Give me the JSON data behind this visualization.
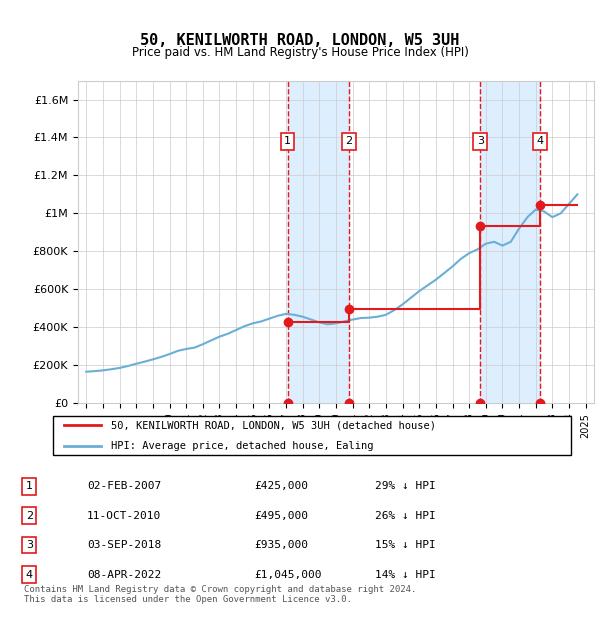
{
  "title": "50, KENILWORTH ROAD, LONDON, W5 3UH",
  "subtitle": "Price paid vs. HM Land Registry's House Price Index (HPI)",
  "footer": "Contains HM Land Registry data © Crown copyright and database right 2024.\nThis data is licensed under the Open Government Licence v3.0.",
  "legend_line1": "50, KENILWORTH ROAD, LONDON, W5 3UH (detached house)",
  "legend_line2": "HPI: Average price, detached house, Ealing",
  "transactions": [
    {
      "num": 1,
      "date": "02-FEB-2007",
      "price": "£425,000",
      "pct": "29% ↓ HPI",
      "year": 2007.09
    },
    {
      "num": 2,
      "date": "11-OCT-2010",
      "price": "£495,000",
      "pct": "26% ↓ HPI",
      "year": 2010.78
    },
    {
      "num": 3,
      "date": "03-SEP-2018",
      "price": "£935,000",
      "pct": "15% ↓ HPI",
      "year": 2018.67
    },
    {
      "num": 4,
      "date": "08-APR-2022",
      "price": "£1,045,000",
      "pct": "14% ↓ HPI",
      "year": 2022.27
    }
  ],
  "hpi_line_color": "#6baed6",
  "price_line_color": "#e31a1c",
  "marker_color": "#e31a1c",
  "transaction_color": "#e31a1c",
  "shade_color": "#ddeeff",
  "vline_color": "#e31a1c",
  "grid_color": "#cccccc",
  "ylim": [
    0,
    1700000
  ],
  "yticks": [
    0,
    200000,
    400000,
    600000,
    800000,
    1000000,
    1200000,
    1400000,
    1600000
  ],
  "xlim_start": 1994.5,
  "xlim_end": 2025.5,
  "hpi_x": [
    1995,
    1995.5,
    1996,
    1996.5,
    1997,
    1997.5,
    1998,
    1998.5,
    1999,
    1999.5,
    2000,
    2000.5,
    2001,
    2001.5,
    2002,
    2002.5,
    2003,
    2003.5,
    2004,
    2004.5,
    2005,
    2005.5,
    2006,
    2006.5,
    2007,
    2007.5,
    2008,
    2008.5,
    2009,
    2009.5,
    2010,
    2010.5,
    2011,
    2011.5,
    2012,
    2012.5,
    2013,
    2013.5,
    2014,
    2014.5,
    2015,
    2015.5,
    2016,
    2016.5,
    2017,
    2017.5,
    2018,
    2018.5,
    2019,
    2019.5,
    2020,
    2020.5,
    2021,
    2021.5,
    2022,
    2022.5,
    2023,
    2023.5,
    2024,
    2024.5
  ],
  "hpi_y": [
    165000,
    168000,
    172000,
    178000,
    185000,
    195000,
    207000,
    218000,
    230000,
    243000,
    258000,
    275000,
    285000,
    292000,
    310000,
    330000,
    350000,
    365000,
    385000,
    405000,
    420000,
    430000,
    445000,
    460000,
    470000,
    465000,
    455000,
    440000,
    425000,
    415000,
    420000,
    430000,
    440000,
    448000,
    450000,
    455000,
    465000,
    490000,
    520000,
    555000,
    590000,
    620000,
    650000,
    685000,
    720000,
    760000,
    790000,
    810000,
    840000,
    850000,
    830000,
    850000,
    920000,
    980000,
    1020000,
    1010000,
    980000,
    1000000,
    1050000,
    1100000
  ],
  "price_x": [
    2007.09,
    2010.78,
    2018.67,
    2022.27,
    2024.5
  ],
  "price_y": [
    425000,
    495000,
    935000,
    1045000,
    1045000
  ],
  "transaction_years": [
    2007.09,
    2010.78,
    2018.67,
    2022.27
  ]
}
